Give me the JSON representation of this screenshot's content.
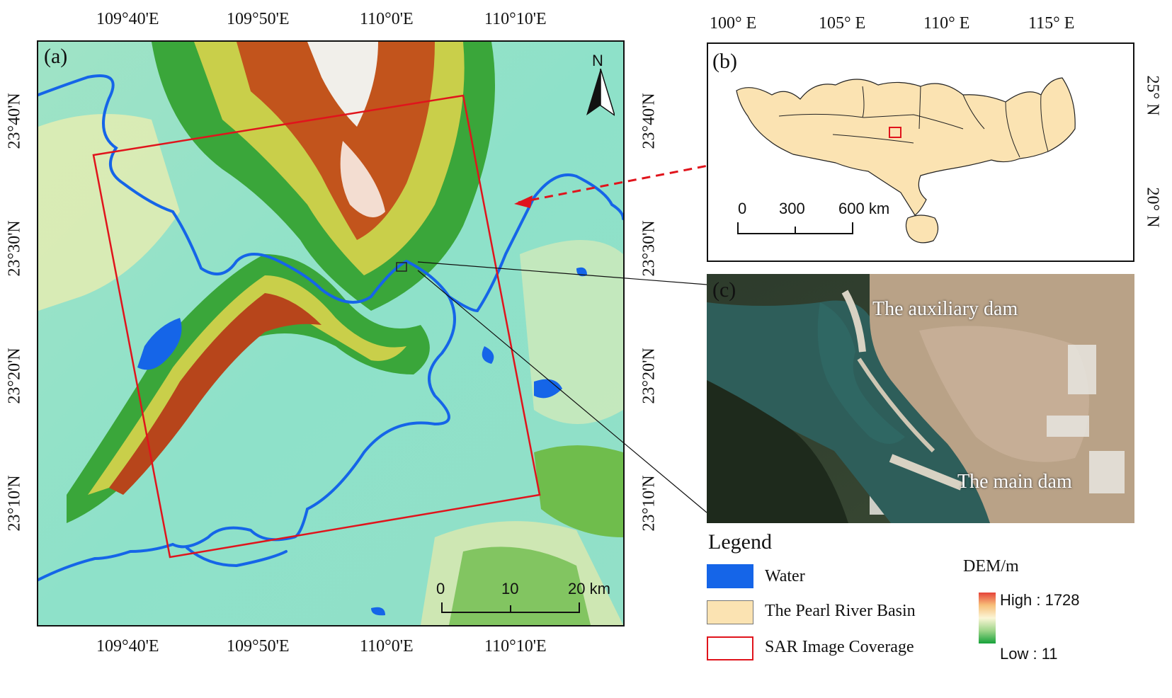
{
  "colors": {
    "water": "#1565e8",
    "basin": "#fbe3b2",
    "coverage": "#e0141c",
    "dem_high": "#e5443a",
    "dem_low": "#16a23a"
  },
  "panel_a": {
    "label": "(a)",
    "top_ticks": [
      "109°40'E",
      "109°50'E",
      "110°0'E",
      "110°10'E"
    ],
    "bottom_ticks": [
      "109°40'E",
      "109°50'E",
      "110°0'E",
      "110°10'E"
    ],
    "left_ticks": [
      "23°40'N",
      "23°30'N",
      "23°20'N",
      "23°10'N"
    ],
    "right_ticks": [
      "23°40'N",
      "23°30'N",
      "23°20'N",
      "23°10'N"
    ],
    "north_label": "N",
    "scale_labels": [
      "0",
      "10",
      "20 km"
    ]
  },
  "panel_b": {
    "label": "(b)",
    "top_ticks": [
      "100° E",
      "105° E",
      "110° E",
      "115° E"
    ],
    "right_ticks": [
      "25° N",
      "20° N"
    ],
    "scale_labels": [
      "0",
      "300",
      "600 km"
    ]
  },
  "panel_c": {
    "label": "(c)",
    "annotations": [
      "The auxiliary dam",
      "The main dam"
    ]
  },
  "legend": {
    "title": "Legend",
    "items": [
      "Water",
      "The Pearl River Basin",
      "SAR Image Coverage"
    ],
    "dem_title": "DEM/m",
    "dem_high": "High : 1728",
    "dem_low": "Low : 11"
  }
}
